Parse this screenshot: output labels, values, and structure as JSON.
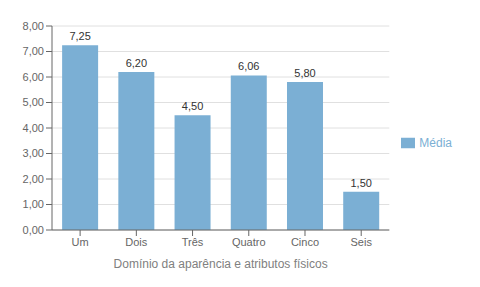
{
  "chart_data": {
    "type": "bar",
    "categories": [
      "Um",
      "Dois",
      "Três",
      "Quatro",
      "Cinco",
      "Seis"
    ],
    "series": [
      {
        "name": "Média",
        "color": "#7BAFD4",
        "values": [
          7.25,
          6.2,
          4.5,
          6.06,
          5.8,
          1.5
        ],
        "value_labels": [
          "7,25",
          "6,20",
          "4,50",
          "6,06",
          "5,80",
          "1,50"
        ]
      }
    ],
    "xlabel": "Domínio da aparência e atributos físicos",
    "ylim": [
      0,
      8.0
    ],
    "yticks": [
      {
        "value": 0.0,
        "label": "0,00"
      },
      {
        "value": 1.0,
        "label": "1,00"
      },
      {
        "value": 2.0,
        "label": "2,00"
      },
      {
        "value": 3.0,
        "label": "3,00"
      },
      {
        "value": 4.0,
        "label": "4,00"
      },
      {
        "value": 5.0,
        "label": "5,00"
      },
      {
        "value": 6.0,
        "label": "6,00"
      },
      {
        "value": 7.0,
        "label": "7,00"
      },
      {
        "value": 8.0,
        "label": "8,00"
      }
    ],
    "grid": true,
    "legend": "right",
    "data_labels": true
  }
}
